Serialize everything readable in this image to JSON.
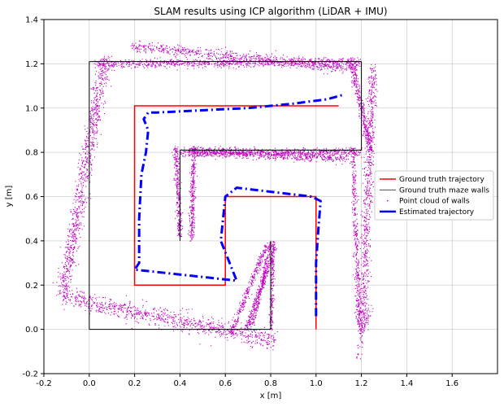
{
  "chart_data": {
    "type": "scatter",
    "title": "SLAM results using ICP algorithm (LiDAR + IMU)",
    "xlabel": "x [m]",
    "ylabel": "y [m]",
    "xlim": [
      -0.2,
      1.8
    ],
    "ylim": [
      -0.2,
      1.4
    ],
    "xticks": [
      "-0.2",
      "0.0",
      "0.2",
      "0.4",
      "0.6",
      "0.8",
      "1.0",
      "1.2",
      "1.4",
      "1.6"
    ],
    "yticks": [
      "-0.2",
      "0.0",
      "0.2",
      "0.4",
      "0.6",
      "0.8",
      "1.0",
      "1.2",
      "1.4"
    ],
    "grid": true,
    "legend_position": "center-right",
    "colors": {
      "ground_truth_trajectory": "#ff0000",
      "maze_walls": "#000000",
      "point_cloud": "#bf00bf",
      "estimated_trajectory": "#0000ff"
    },
    "series": [
      {
        "name": "Ground truth trajectory",
        "kind": "line",
        "x": [
          1.0,
          1.0,
          0.6,
          0.6,
          0.2,
          0.2,
          1.1
        ],
        "y": [
          0.0,
          0.6,
          0.6,
          0.2,
          0.2,
          1.01,
          1.01
        ]
      },
      {
        "name": "Ground truth maze walls",
        "kind": "segments",
        "segments": [
          [
            [
              0.0,
              0.0
            ],
            [
              0.8,
              0.0
            ]
          ],
          [
            [
              0.0,
              0.0
            ],
            [
              0.0,
              1.21
            ]
          ],
          [
            [
              0.0,
              1.21
            ],
            [
              1.2,
              1.21
            ]
          ],
          [
            [
              1.2,
              1.21
            ],
            [
              1.2,
              0.81
            ]
          ],
          [
            [
              1.2,
              0.81
            ],
            [
              0.4,
              0.81
            ]
          ],
          [
            [
              0.4,
              0.81
            ],
            [
              0.4,
              0.4
            ]
          ],
          [
            [
              0.8,
              0.0
            ],
            [
              0.8,
              0.4
            ]
          ]
        ]
      },
      {
        "name": "Point cloud of walls",
        "kind": "points",
        "bands": [
          {
            "from": [
              -0.12,
              0.15
            ],
            "to": [
              0.82,
              -0.05
            ],
            "spread": 0.04,
            "count": 900
          },
          {
            "from": [
              -0.12,
              0.15
            ],
            "to": [
              0.07,
              1.24
            ],
            "spread": 0.03,
            "count": 900
          },
          {
            "from": [
              0.02,
              1.2
            ],
            "to": [
              1.2,
              1.21
            ],
            "spread": 0.02,
            "count": 800
          },
          {
            "from": [
              0.18,
              1.28
            ],
            "to": [
              1.18,
              1.18
            ],
            "spread": 0.025,
            "count": 700
          },
          {
            "from": [
              1.15,
              1.23
            ],
            "to": [
              1.24,
              0.8
            ],
            "spread": 0.015,
            "count": 350
          },
          {
            "from": [
              1.25,
              1.2
            ],
            "to": [
              1.2,
              -0.02
            ],
            "spread": 0.02,
            "count": 700
          },
          {
            "from": [
              1.16,
              0.82
            ],
            "to": [
              1.19,
              0.0
            ],
            "spread": 0.012,
            "count": 400
          },
          {
            "from": [
              0.4,
              0.8
            ],
            "to": [
              1.2,
              0.8
            ],
            "spread": 0.02,
            "count": 800
          },
          {
            "from": [
              0.44,
              0.81
            ],
            "to": [
              1.14,
              0.77
            ],
            "spread": 0.018,
            "count": 500
          },
          {
            "from": [
              0.38,
              0.83
            ],
            "to": [
              0.4,
              0.42
            ],
            "spread": 0.012,
            "count": 300
          },
          {
            "from": [
              0.46,
              0.83
            ],
            "to": [
              0.45,
              0.4
            ],
            "spread": 0.012,
            "count": 300
          },
          {
            "from": [
              0.62,
              -0.02
            ],
            "to": [
              0.78,
              0.38
            ],
            "spread": 0.012,
            "count": 300
          },
          {
            "from": [
              0.69,
              0.0
            ],
            "to": [
              0.82,
              0.38
            ],
            "spread": 0.012,
            "count": 300
          },
          {
            "from": [
              0.8,
              0.0
            ],
            "to": [
              0.81,
              0.4
            ],
            "spread": 0.008,
            "count": 200
          },
          {
            "from": [
              0.72,
              0.02
            ],
            "to": [
              0.8,
              0.4
            ],
            "spread": 0.01,
            "count": 200
          },
          {
            "from": [
              1.18,
              -0.13
            ],
            "to": [
              1.24,
              0.12
            ],
            "spread": 0.015,
            "count": 60
          }
        ]
      },
      {
        "name": "Estimated trajectory",
        "kind": "line",
        "x": [
          1.0,
          1.0,
          1.0,
          1.01,
          1.02,
          0.98,
          0.65,
          0.6,
          0.58,
          0.65,
          0.2,
          0.22,
          0.22,
          0.22,
          0.23,
          0.25,
          0.26,
          0.24,
          0.26,
          0.3,
          0.5,
          0.7,
          0.9,
          1.05,
          1.12
        ],
        "y": [
          0.06,
          0.1,
          0.3,
          0.45,
          0.58,
          0.6,
          0.64,
          0.6,
          0.4,
          0.22,
          0.27,
          0.3,
          0.4,
          0.5,
          0.7,
          0.8,
          0.9,
          0.95,
          0.98,
          0.98,
          0.99,
          1.0,
          1.02,
          1.04,
          1.06
        ]
      }
    ]
  }
}
